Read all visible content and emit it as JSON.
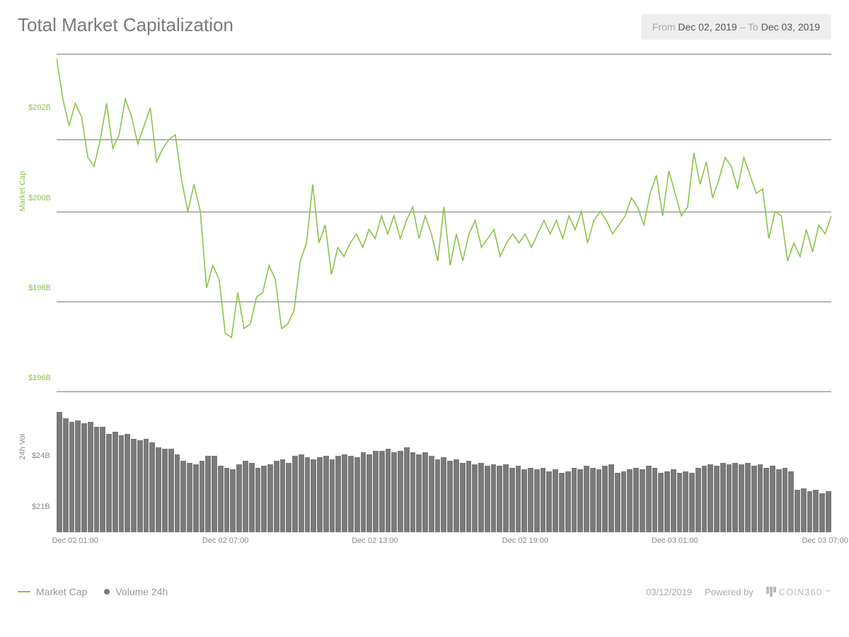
{
  "title": "Total Market Capitalization",
  "date_range": {
    "from_label": "From",
    "from_value": "Dec 02, 2019",
    "separator": "–",
    "to_label": "To",
    "to_value": "Dec 03, 2019"
  },
  "market_cap_chart": {
    "type": "line",
    "y_axis_label": "Market Cap",
    "y_ticks": [
      {
        "label": "$202B",
        "value": 202
      },
      {
        "label": "$200B",
        "value": 200
      },
      {
        "label": "$198B",
        "value": 198
      },
      {
        "label": "$196B",
        "value": 196
      }
    ],
    "y_domain": [
      195.5,
      203.2
    ],
    "gridlines": [
      203.2,
      201.3,
      199.7,
      197.7,
      195.7
    ],
    "line_color": "#8bc34a",
    "line_width": 1.6,
    "grid_color": "#7a7a7a",
    "background_color": "#ffffff",
    "tick_color": "#8bc34a",
    "tick_fontsize": 11,
    "values": [
      203.1,
      202.2,
      201.6,
      202.1,
      201.8,
      200.9,
      200.7,
      201.3,
      202.1,
      201.1,
      201.4,
      202.2,
      201.8,
      201.2,
      201.6,
      202.0,
      200.8,
      201.1,
      201.3,
      201.4,
      200.4,
      199.7,
      200.3,
      199.7,
      198.0,
      198.5,
      198.2,
      197.0,
      196.9,
      197.9,
      197.1,
      197.2,
      197.8,
      197.9,
      198.5,
      198.2,
      197.1,
      197.2,
      197.5,
      198.6,
      199.0,
      200.3,
      199.0,
      199.4,
      198.3,
      198.9,
      198.7,
      199.0,
      199.2,
      198.9,
      199.3,
      199.1,
      199.6,
      199.2,
      199.6,
      199.1,
      199.5,
      199.8,
      199.1,
      199.6,
      199.2,
      198.6,
      199.8,
      198.5,
      199.2,
      198.6,
      199.2,
      199.5,
      198.9,
      199.1,
      199.3,
      198.7,
      199.0,
      199.2,
      199.0,
      199.2,
      198.9,
      199.2,
      199.5,
      199.2,
      199.5,
      199.1,
      199.6,
      199.3,
      199.7,
      199.0,
      199.5,
      199.7,
      199.5,
      199.2,
      199.4,
      199.6,
      200.0,
      199.8,
      199.4,
      200.1,
      200.5,
      199.6,
      200.6,
      200.1,
      199.6,
      199.8,
      201.0,
      200.3,
      200.8,
      200.0,
      200.4,
      200.9,
      200.7,
      200.2,
      200.9,
      200.5,
      200.1,
      200.2,
      199.1,
      199.7,
      199.6,
      198.6,
      199.0,
      198.7,
      199.3,
      198.8,
      199.4,
      199.2,
      199.6
    ]
  },
  "volume_chart": {
    "type": "bar",
    "y_axis_label": "24h Vol",
    "y_ticks": [
      {
        "label": "$24B",
        "value": 24
      },
      {
        "label": "$21B",
        "value": 21
      }
    ],
    "y_domain": [
      19.5,
      27.0
    ],
    "bar_color": "#7a7a7a",
    "tick_color": "#888888",
    "tick_fontsize": 11,
    "values": [
      26.6,
      26.2,
      26.0,
      26.1,
      25.9,
      26.0,
      25.7,
      25.7,
      25.3,
      25.4,
      25.2,
      25.3,
      25.0,
      24.9,
      25.0,
      24.8,
      24.5,
      24.4,
      24.4,
      24.1,
      23.7,
      23.6,
      23.5,
      23.7,
      24.0,
      24.0,
      23.4,
      23.3,
      23.2,
      23.5,
      23.7,
      23.6,
      23.3,
      23.4,
      23.5,
      23.7,
      23.8,
      23.6,
      24.0,
      24.1,
      23.9,
      23.8,
      23.9,
      24.0,
      23.8,
      24.0,
      24.1,
      24.0,
      23.9,
      24.2,
      24.1,
      24.3,
      24.3,
      24.4,
      24.2,
      24.3,
      24.5,
      24.2,
      24.1,
      24.2,
      24.0,
      23.8,
      23.9,
      23.7,
      23.8,
      23.6,
      23.7,
      23.5,
      23.6,
      23.4,
      23.5,
      23.4,
      23.5,
      23.3,
      23.4,
      23.2,
      23.3,
      23.2,
      23.3,
      23.1,
      23.2,
      23.0,
      23.1,
      23.3,
      23.2,
      23.4,
      23.3,
      23.2,
      23.4,
      23.5,
      23.0,
      23.1,
      23.2,
      23.3,
      23.2,
      23.4,
      23.3,
      23.0,
      23.1,
      23.2,
      23.0,
      23.1,
      23.0,
      23.3,
      23.4,
      23.5,
      23.4,
      23.6,
      23.5,
      23.6,
      23.5,
      23.6,
      23.4,
      23.5,
      23.3,
      23.4,
      23.2,
      23.3,
      23.1,
      22.0,
      22.1,
      21.9,
      22.0,
      21.8,
      21.9
    ]
  },
  "x_axis": {
    "ticks": [
      {
        "label": "Dec 02 01:00",
        "pos": 0
      },
      {
        "label": "Dec 02 07:00",
        "pos": 0.194
      },
      {
        "label": "Dec 02 13:00",
        "pos": 0.387
      },
      {
        "label": "Dec 02 19:00",
        "pos": 0.581
      },
      {
        "label": "Dec 03 01:00",
        "pos": 0.774
      },
      {
        "label": "Dec 03 07:00",
        "pos": 0.968
      }
    ],
    "tick_color": "#888888",
    "tick_fontsize": 11
  },
  "legend": {
    "items": [
      {
        "label": "Market Cap",
        "type": "line",
        "color": "#8bc34a"
      },
      {
        "label": "Volume 24h",
        "type": "dot",
        "color": "#7a7a7a"
      }
    ]
  },
  "footer": {
    "date": "03/12/2019",
    "powered_label": "Powered by",
    "brand": "COIN360",
    "trademark": "™"
  }
}
